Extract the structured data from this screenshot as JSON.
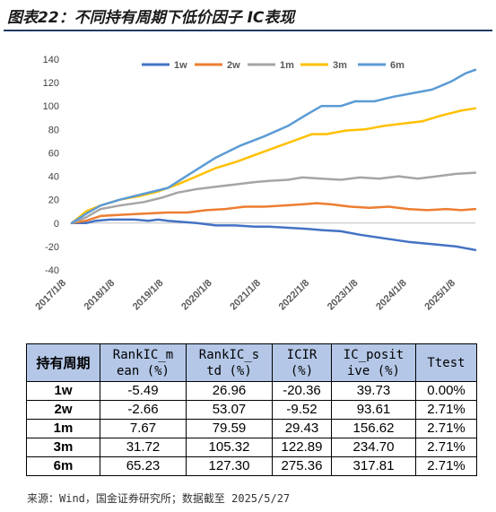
{
  "title": "图表22：不同持有周期下低价因子 IC表现",
  "chart_data": {
    "type": "line",
    "ylim": [
      -40,
      140
    ],
    "yticks": [
      -40,
      -20,
      0,
      20,
      40,
      60,
      80,
      100,
      120,
      140
    ],
    "x_ticks": [
      "2017/1/8",
      "2018/1/8",
      "2019/1/8",
      "2020/1/8",
      "2021/1/8",
      "2022/1/8",
      "2023/1/8",
      "2024/1/8",
      "2025/1/8"
    ],
    "x_range": [
      2017.0,
      2025.4
    ],
    "legend_position": "top",
    "grid": false,
    "series": [
      {
        "name": "1w",
        "color": "#4472c4",
        "points": [
          [
            2017.0,
            0
          ],
          [
            2017.3,
            0
          ],
          [
            2017.5,
            2
          ],
          [
            2017.8,
            3
          ],
          [
            2018.0,
            3
          ],
          [
            2018.3,
            3
          ],
          [
            2018.6,
            2
          ],
          [
            2018.8,
            3
          ],
          [
            2019.0,
            2
          ],
          [
            2019.3,
            1
          ],
          [
            2019.6,
            0
          ],
          [
            2020.0,
            -2
          ],
          [
            2020.4,
            -2
          ],
          [
            2020.8,
            -3
          ],
          [
            2021.1,
            -3
          ],
          [
            2021.5,
            -4
          ],
          [
            2021.9,
            -5
          ],
          [
            2022.2,
            -6
          ],
          [
            2022.6,
            -7
          ],
          [
            2023.0,
            -10
          ],
          [
            2023.5,
            -13
          ],
          [
            2024.0,
            -16
          ],
          [
            2024.5,
            -18
          ],
          [
            2025.0,
            -20
          ],
          [
            2025.4,
            -23
          ]
        ]
      },
      {
        "name": "2w",
        "color": "#ed7d31",
        "points": [
          [
            2017.0,
            0
          ],
          [
            2017.3,
            2
          ],
          [
            2017.6,
            6
          ],
          [
            2018.0,
            7
          ],
          [
            2018.5,
            8
          ],
          [
            2019.0,
            9
          ],
          [
            2019.4,
            9
          ],
          [
            2019.8,
            11
          ],
          [
            2020.2,
            12
          ],
          [
            2020.6,
            14
          ],
          [
            2021.0,
            14
          ],
          [
            2021.4,
            15
          ],
          [
            2021.8,
            16
          ],
          [
            2022.1,
            17
          ],
          [
            2022.4,
            16
          ],
          [
            2022.8,
            14
          ],
          [
            2023.2,
            13
          ],
          [
            2023.6,
            14
          ],
          [
            2024.0,
            12
          ],
          [
            2024.4,
            11
          ],
          [
            2024.8,
            12
          ],
          [
            2025.1,
            11
          ],
          [
            2025.4,
            12
          ]
        ]
      },
      {
        "name": "1m",
        "color": "#a5a5a5",
        "points": [
          [
            2017.0,
            0
          ],
          [
            2017.3,
            5
          ],
          [
            2017.6,
            12
          ],
          [
            2018.0,
            15
          ],
          [
            2018.5,
            18
          ],
          [
            2018.9,
            22
          ],
          [
            2019.2,
            26
          ],
          [
            2019.6,
            29
          ],
          [
            2020.0,
            31
          ],
          [
            2020.4,
            33
          ],
          [
            2020.8,
            35
          ],
          [
            2021.1,
            36
          ],
          [
            2021.5,
            37
          ],
          [
            2021.8,
            39
          ],
          [
            2022.2,
            38
          ],
          [
            2022.6,
            37
          ],
          [
            2023.0,
            39
          ],
          [
            2023.4,
            38
          ],
          [
            2023.8,
            40
          ],
          [
            2024.2,
            38
          ],
          [
            2024.6,
            40
          ],
          [
            2025.0,
            42
          ],
          [
            2025.4,
            43
          ]
        ]
      },
      {
        "name": "3m",
        "color": "#ffc000",
        "points": [
          [
            2017.0,
            0
          ],
          [
            2017.3,
            10
          ],
          [
            2017.6,
            15
          ],
          [
            2018.0,
            20
          ],
          [
            2018.4,
            23
          ],
          [
            2018.8,
            27
          ],
          [
            2019.2,
            33
          ],
          [
            2019.6,
            40
          ],
          [
            2020.0,
            47
          ],
          [
            2020.4,
            52
          ],
          [
            2020.8,
            58
          ],
          [
            2021.2,
            64
          ],
          [
            2021.6,
            70
          ],
          [
            2022.0,
            76
          ],
          [
            2022.3,
            76
          ],
          [
            2022.7,
            79
          ],
          [
            2023.1,
            80
          ],
          [
            2023.5,
            83
          ],
          [
            2023.9,
            85
          ],
          [
            2024.3,
            87
          ],
          [
            2024.7,
            92
          ],
          [
            2025.1,
            96
          ],
          [
            2025.4,
            98
          ]
        ]
      },
      {
        "name": "6m",
        "color": "#5b9bd5",
        "points": [
          [
            2017.0,
            0
          ],
          [
            2017.3,
            8
          ],
          [
            2017.6,
            15
          ],
          [
            2018.0,
            20
          ],
          [
            2018.5,
            25
          ],
          [
            2019.0,
            30
          ],
          [
            2019.5,
            43
          ],
          [
            2020.0,
            56
          ],
          [
            2020.5,
            66
          ],
          [
            2021.0,
            74
          ],
          [
            2021.5,
            83
          ],
          [
            2021.9,
            93
          ],
          [
            2022.2,
            100
          ],
          [
            2022.6,
            100
          ],
          [
            2022.9,
            104
          ],
          [
            2023.3,
            104
          ],
          [
            2023.7,
            108
          ],
          [
            2024.1,
            111
          ],
          [
            2024.5,
            114
          ],
          [
            2024.9,
            121
          ],
          [
            2025.2,
            128
          ],
          [
            2025.4,
            131
          ]
        ]
      }
    ]
  },
  "table": {
    "headers": [
      {
        "line1": "持有周期",
        "line2": ""
      },
      {
        "line1": "RankIC_m",
        "line2": "ean (%)"
      },
      {
        "line1": "RankIC_s",
        "line2": "td (%)"
      },
      {
        "line1": "ICIR",
        "line2": "(%)"
      },
      {
        "line1": "IC_posit",
        "line2": "ive (%)"
      },
      {
        "line1": "Ttest",
        "line2": ""
      }
    ],
    "rows": [
      [
        "1w",
        "-5.49",
        "26.96",
        "-20.36",
        "39.73",
        "0.00%"
      ],
      [
        "2w",
        "-2.66",
        "53.07",
        "-9.52",
        "93.61",
        "2.71%"
      ],
      [
        "1m",
        "7.67",
        "79.59",
        "29.43",
        "156.62",
        "2.71%"
      ],
      [
        "3m",
        "31.72",
        "105.32",
        "122.89",
        "234.70",
        "2.71%"
      ],
      [
        "6m",
        "65.23",
        "127.30",
        "275.36",
        "317.81",
        "2.71%"
      ]
    ]
  },
  "source": "来源：Wind，国金证券研究所；数据截至 2025/5/27"
}
